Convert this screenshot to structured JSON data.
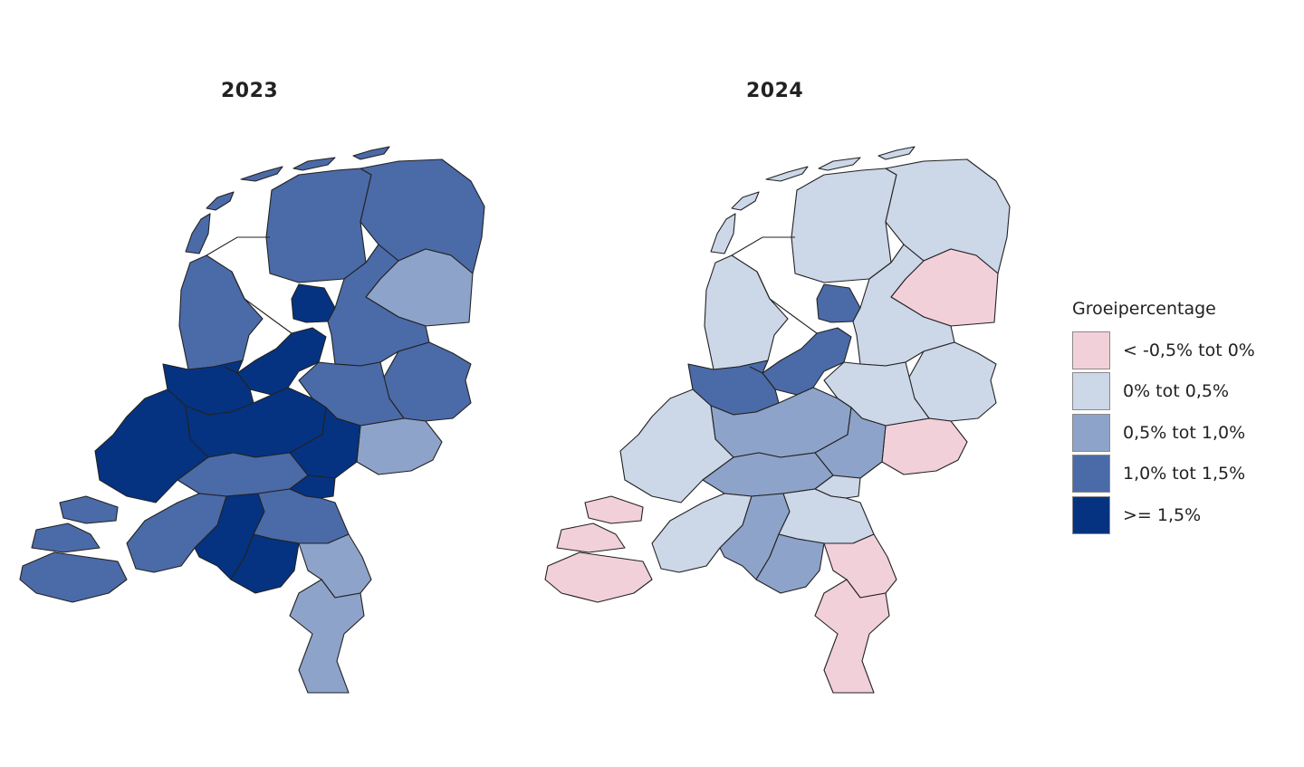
{
  "maps": [
    {
      "title": "2023"
    },
    {
      "title": "2024"
    }
  ],
  "legend": {
    "title": "Groeipercentage",
    "classes": [
      {
        "label": "< -0,5% tot 0%",
        "color": "#f2d0d9"
      },
      {
        "label": "0% tot 0,5%",
        "color": "#ccd7e8"
      },
      {
        "label": "0,5% tot 1,0%",
        "color": "#8ea3c9"
      },
      {
        "label": "1,0% tot 1,5%",
        "color": "#4b6aa8"
      },
      {
        "label": ">= 1,5%",
        "color": "#053382"
      }
    ]
  },
  "regions": [
    {
      "id": "noord-friesland",
      "y2023": 3,
      "y2024": 1
    },
    {
      "id": "groningen",
      "y2023": 3,
      "y2024": 1
    },
    {
      "id": "zuidoost-drenthe",
      "y2023": 2,
      "y2024": 0
    },
    {
      "id": "noordoostpolder",
      "y2023": 4,
      "y2024": 3
    },
    {
      "id": "flevoland",
      "y2023": 4,
      "y2024": 3
    },
    {
      "id": "kop-noord-holland",
      "y2023": 3,
      "y2024": 1
    },
    {
      "id": "zwolle-overijssel",
      "y2023": 3,
      "y2024": 1
    },
    {
      "id": "twente",
      "y2023": 3,
      "y2024": 1
    },
    {
      "id": "achterhoek",
      "y2023": 2,
      "y2024": 0
    },
    {
      "id": "veluwe",
      "y2023": 3,
      "y2024": 1
    },
    {
      "id": "amsterdam",
      "y2023": 4,
      "y2024": 3
    },
    {
      "id": "utrecht",
      "y2023": 4,
      "y2024": 2
    },
    {
      "id": "gelderse-vallei",
      "y2023": 4,
      "y2024": 2
    },
    {
      "id": "rotterdam",
      "y2023": 4,
      "y2024": 1
    },
    {
      "id": "rivierenland",
      "y2023": 3,
      "y2024": 2
    },
    {
      "id": "nijmegen",
      "y2023": 4,
      "y2024": 1
    },
    {
      "id": "zeeland",
      "y2023": 3,
      "y2024": 0
    },
    {
      "id": "west-brabant",
      "y2023": 3,
      "y2024": 1
    },
    {
      "id": "midden-brabant",
      "y2023": 4,
      "y2024": 2
    },
    {
      "id": "noordoost-brabant",
      "y2023": 3,
      "y2024": 1
    },
    {
      "id": "zuidoost-brabant",
      "y2023": 4,
      "y2024": 2
    },
    {
      "id": "noord-limburg",
      "y2023": 2,
      "y2024": 0
    },
    {
      "id": "zuid-limburg",
      "y2023": 2,
      "y2024": 0
    }
  ]
}
